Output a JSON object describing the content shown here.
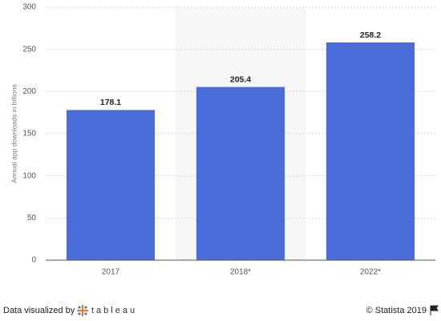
{
  "chart_data": {
    "type": "bar",
    "y_label": "Annual app downloads in billions",
    "categories": [
      "2017",
      "2018*",
      "2022*"
    ],
    "values": [
      178.1,
      205.4,
      258.2
    ],
    "color": "#4a6ddb",
    "ylim": [
      0,
      300
    ],
    "yticks": [
      0,
      50,
      100,
      150,
      200,
      250,
      300
    ],
    "grid": true
  },
  "footer": {
    "credit": "Data visualized by",
    "brand": "tableau",
    "source": "© Statista 2019"
  }
}
